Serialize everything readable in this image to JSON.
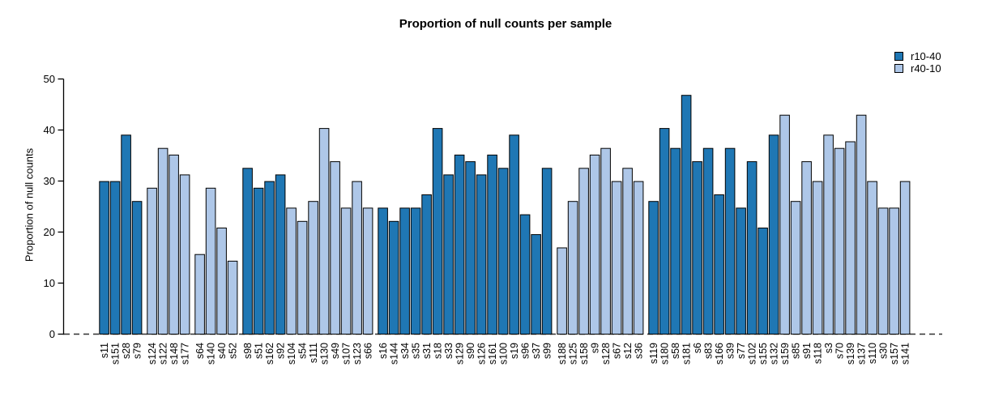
{
  "title": "Proportion of null counts per sample",
  "chart_data": {
    "type": "bar",
    "title": "Proportion of null counts per sample",
    "xlabel": "",
    "ylabel": "Proportion of null counts",
    "ylim": [
      0,
      50
    ],
    "yticks": [
      0,
      10,
      20,
      30,
      40,
      50
    ],
    "grid": false,
    "legend_position": "top-right",
    "zero_baseline_style": "dashed",
    "series": [
      {
        "name": "r10-40",
        "color": "#1F77B4"
      },
      {
        "name": "r40-10",
        "color": "#AEC7E8"
      }
    ],
    "gap_after": [
      4,
      8,
      12,
      24,
      40,
      48
    ],
    "bars": [
      {
        "label": "s11",
        "value": 29.9,
        "series": "r10-40"
      },
      {
        "label": "s151",
        "value": 29.9,
        "series": "r10-40"
      },
      {
        "label": "s28",
        "value": 39.0,
        "series": "r10-40"
      },
      {
        "label": "s79",
        "value": 26.0,
        "series": "r10-40"
      },
      {
        "label": "s124",
        "value": 28.6,
        "series": "r40-10"
      },
      {
        "label": "s122",
        "value": 36.4,
        "series": "r40-10"
      },
      {
        "label": "s148",
        "value": 35.1,
        "series": "r40-10"
      },
      {
        "label": "s177",
        "value": 31.2,
        "series": "r40-10"
      },
      {
        "label": "s64",
        "value": 15.6,
        "series": "r40-10"
      },
      {
        "label": "s140",
        "value": 28.6,
        "series": "r40-10"
      },
      {
        "label": "s40",
        "value": 20.8,
        "series": "r40-10"
      },
      {
        "label": "s52",
        "value": 14.3,
        "series": "r40-10"
      },
      {
        "label": "s98",
        "value": 32.5,
        "series": "r10-40"
      },
      {
        "label": "s51",
        "value": 28.6,
        "series": "r10-40"
      },
      {
        "label": "s162",
        "value": 29.9,
        "series": "r10-40"
      },
      {
        "label": "s92",
        "value": 31.2,
        "series": "r10-40"
      },
      {
        "label": "s104",
        "value": 24.7,
        "series": "r40-10"
      },
      {
        "label": "s54",
        "value": 22.1,
        "series": "r40-10"
      },
      {
        "label": "s111",
        "value": 26.0,
        "series": "r40-10"
      },
      {
        "label": "s130",
        "value": 40.3,
        "series": "r40-10"
      },
      {
        "label": "s49",
        "value": 33.8,
        "series": "r40-10"
      },
      {
        "label": "s107",
        "value": 24.7,
        "series": "r40-10"
      },
      {
        "label": "s123",
        "value": 29.9,
        "series": "r40-10"
      },
      {
        "label": "s66",
        "value": 24.7,
        "series": "r40-10"
      },
      {
        "label": "s16",
        "value": 24.7,
        "series": "r10-40"
      },
      {
        "label": "s144",
        "value": 22.1,
        "series": "r10-40"
      },
      {
        "label": "s34",
        "value": 24.7,
        "series": "r10-40"
      },
      {
        "label": "s35",
        "value": 24.7,
        "series": "r10-40"
      },
      {
        "label": "s31",
        "value": 27.3,
        "series": "r10-40"
      },
      {
        "label": "s18",
        "value": 40.3,
        "series": "r10-40"
      },
      {
        "label": "s33",
        "value": 31.2,
        "series": "r10-40"
      },
      {
        "label": "s129",
        "value": 35.1,
        "series": "r10-40"
      },
      {
        "label": "s90",
        "value": 33.8,
        "series": "r10-40"
      },
      {
        "label": "s126",
        "value": 31.2,
        "series": "r10-40"
      },
      {
        "label": "s161",
        "value": 35.1,
        "series": "r10-40"
      },
      {
        "label": "s100",
        "value": 32.5,
        "series": "r10-40"
      },
      {
        "label": "s19",
        "value": 39.0,
        "series": "r10-40"
      },
      {
        "label": "s96",
        "value": 23.4,
        "series": "r10-40"
      },
      {
        "label": "s37",
        "value": 19.5,
        "series": "r10-40"
      },
      {
        "label": "s99",
        "value": 32.5,
        "series": "r10-40"
      },
      {
        "label": "s188",
        "value": 16.9,
        "series": "r40-10"
      },
      {
        "label": "s125",
        "value": 26.0,
        "series": "r40-10"
      },
      {
        "label": "s158",
        "value": 32.5,
        "series": "r40-10"
      },
      {
        "label": "s9",
        "value": 35.1,
        "series": "r40-10"
      },
      {
        "label": "s128",
        "value": 36.4,
        "series": "r40-10"
      },
      {
        "label": "s67",
        "value": 29.9,
        "series": "r40-10"
      },
      {
        "label": "s12",
        "value": 32.5,
        "series": "r40-10"
      },
      {
        "label": "s36",
        "value": 29.9,
        "series": "r40-10"
      },
      {
        "label": "s119",
        "value": 26.0,
        "series": "r10-40"
      },
      {
        "label": "s180",
        "value": 40.3,
        "series": "r10-40"
      },
      {
        "label": "s58",
        "value": 36.4,
        "series": "r10-40"
      },
      {
        "label": "s181",
        "value": 46.8,
        "series": "r10-40"
      },
      {
        "label": "s6",
        "value": 33.8,
        "series": "r10-40"
      },
      {
        "label": "s83",
        "value": 36.4,
        "series": "r10-40"
      },
      {
        "label": "s166",
        "value": 27.3,
        "series": "r10-40"
      },
      {
        "label": "s39",
        "value": 36.4,
        "series": "r10-40"
      },
      {
        "label": "s77",
        "value": 24.7,
        "series": "r10-40"
      },
      {
        "label": "s102",
        "value": 33.8,
        "series": "r10-40"
      },
      {
        "label": "s155",
        "value": 20.8,
        "series": "r10-40"
      },
      {
        "label": "s132",
        "value": 39.0,
        "series": "r10-40"
      },
      {
        "label": "s159",
        "value": 42.9,
        "series": "r40-10"
      },
      {
        "label": "s85",
        "value": 26.0,
        "series": "r40-10"
      },
      {
        "label": "s91",
        "value": 33.8,
        "series": "r40-10"
      },
      {
        "label": "s118",
        "value": 29.9,
        "series": "r40-10"
      },
      {
        "label": "s3",
        "value": 39.0,
        "series": "r40-10"
      },
      {
        "label": "s70",
        "value": 36.4,
        "series": "r40-10"
      },
      {
        "label": "s139",
        "value": 37.7,
        "series": "r40-10"
      },
      {
        "label": "s137",
        "value": 42.9,
        "series": "r40-10"
      },
      {
        "label": "s110",
        "value": 29.9,
        "series": "r40-10"
      },
      {
        "label": "s30",
        "value": 24.7,
        "series": "r40-10"
      },
      {
        "label": "s157",
        "value": 24.7,
        "series": "r40-10"
      },
      {
        "label": "s141",
        "value": 29.9,
        "series": "r40-10"
      }
    ]
  }
}
